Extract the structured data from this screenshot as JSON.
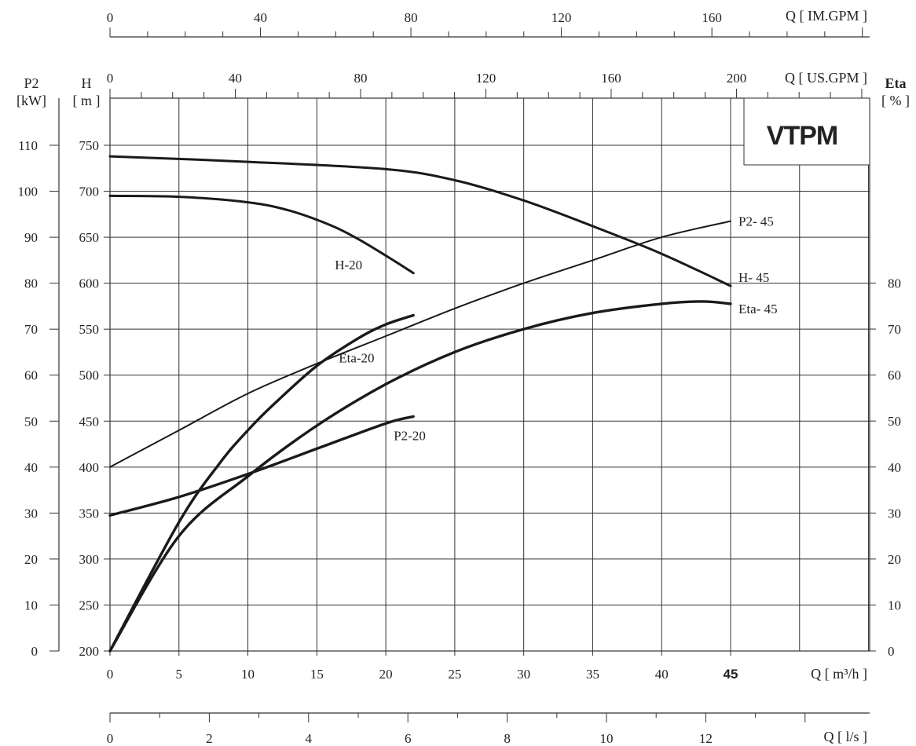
{
  "chart_data": {
    "type": "line",
    "brand": {
      "logo_text": "VTPM",
      "logo_color": "#b0683a"
    },
    "x_axes": {
      "m3h": {
        "title": "Q [ m³/h ]",
        "range": [
          0,
          55
        ],
        "ticks": [
          "0",
          "5",
          "10",
          "15",
          "20",
          "25",
          "30",
          "35",
          "40",
          "45"
        ]
      },
      "ls": {
        "title": "Q [ l/s ]",
        "ticks": [
          "0",
          "2",
          "4",
          "6",
          "8",
          "10",
          "12"
        ]
      },
      "imgpm": {
        "title": "Q [ IM.GPM ]",
        "ticks": [
          "0",
          "40",
          "80",
          "120",
          "160"
        ]
      },
      "usgpm": {
        "title": "Q [ US.GPM ]",
        "ticks": [
          "0",
          "40",
          "80",
          "120",
          "160",
          "200"
        ]
      }
    },
    "y_axes": {
      "h": {
        "title_top": "H",
        "title_bottom": "[ m ]",
        "range": [
          200,
          750
        ],
        "ticks": [
          "200",
          "250",
          "300",
          "350",
          "400",
          "450",
          "500",
          "550",
          "600",
          "650",
          "700",
          "750"
        ]
      },
      "p2": {
        "title_top": "P2",
        "title_bottom": "[kW]",
        "range": [
          0,
          110
        ],
        "ticks": [
          "0",
          "10",
          "20",
          "30",
          "40",
          "50",
          "60",
          "70",
          "80",
          "90",
          "100",
          "110"
        ]
      },
      "eta": {
        "title_top": "Eta",
        "title_bottom": "[ % ]",
        "range": [
          0,
          80
        ],
        "ticks": [
          "0",
          "10",
          "20",
          "30",
          "40",
          "50",
          "60",
          "70",
          "80"
        ]
      }
    },
    "grid": true,
    "series": [
      {
        "name": "H-20",
        "label": "H-20",
        "axis": "h",
        "width": 3,
        "x": [
          0,
          5,
          10,
          13,
          16,
          18,
          20,
          22
        ],
        "y": [
          695,
          694,
          688,
          679,
          663,
          648,
          630,
          611
        ]
      },
      {
        "name": "H-45",
        "label": "H- 45",
        "axis": "h",
        "width": 3,
        "x": [
          0,
          10,
          20,
          25,
          30,
          35,
          40,
          45
        ],
        "y": [
          738,
          732,
          724,
          712,
          690,
          662,
          632,
          597
        ]
      },
      {
        "name": "Eta-20",
        "label": "Eta-20",
        "axis": "eta",
        "width": 3.4,
        "x": [
          0,
          5,
          8,
          10,
          12,
          15,
          18,
          20,
          22
        ],
        "y": [
          0,
          28,
          41,
          48,
          54,
          62,
          68,
          71,
          73
        ]
      },
      {
        "name": "Eta-45",
        "label": "Eta- 45",
        "axis": "eta",
        "width": 3.4,
        "x": [
          0,
          5,
          10,
          15,
          20,
          25,
          30,
          35,
          40,
          43,
          45
        ],
        "y": [
          0,
          25,
          38,
          49,
          58,
          65,
          70,
          73.5,
          75.5,
          76,
          75.5
        ]
      },
      {
        "name": "P2-20",
        "label": "P2-20",
        "axis": "p2",
        "width": 3.4,
        "x": [
          0,
          5,
          10,
          15,
          20,
          22
        ],
        "y": [
          29.5,
          33.5,
          38.5,
          44,
          49.5,
          51
        ]
      },
      {
        "name": "P2-45",
        "label": "P2- 45",
        "axis": "p2",
        "width": 2,
        "x": [
          0,
          5,
          10,
          15,
          20,
          25,
          30,
          35,
          40,
          45
        ],
        "y": [
          40,
          48,
          56,
          62.5,
          68.5,
          74.5,
          80,
          85,
          90,
          93.5
        ]
      }
    ]
  }
}
